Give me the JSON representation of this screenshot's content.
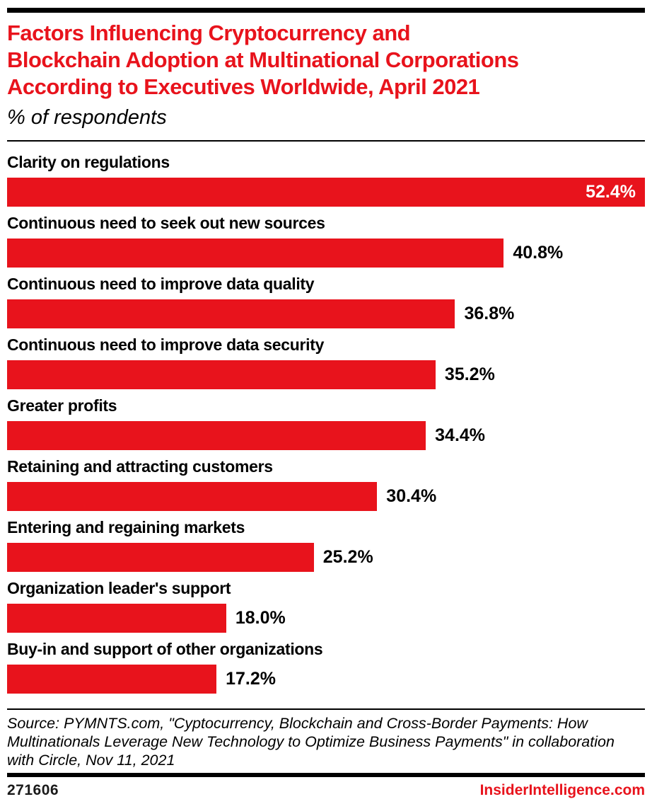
{
  "header": {
    "title_lines": [
      "Factors Influencing Cryptocurrency and",
      "Blockchain Adoption at Multinational Corporations",
      "According to Executives Worldwide, April 2021"
    ],
    "subtitle": "% of respondents"
  },
  "chart_data": {
    "type": "bar",
    "orientation": "horizontal",
    "title": "Factors Influencing Cryptocurrency and Blockchain Adoption at Multinational Corporations According to Executives Worldwide, April 2021",
    "subtitle": "% of respondents",
    "categories": [
      "Clarity on regulations",
      "Continuous need to seek out new sources",
      "Continuous need to improve data quality",
      "Continuous need to improve data security",
      "Greater profits",
      "Retaining and attracting customers",
      "Entering and regaining markets",
      "Organization leader's support",
      "Buy-in and support of other organizations"
    ],
    "values": [
      52.4,
      40.8,
      36.8,
      35.2,
      34.4,
      30.4,
      25.2,
      18.0,
      17.2
    ],
    "value_labels": [
      "52.4%",
      "40.8%",
      "36.8%",
      "35.2%",
      "34.4%",
      "30.4%",
      "25.2%",
      "18.0%",
      "17.2%"
    ],
    "xlabel": "",
    "ylabel": "",
    "xlim": [
      0,
      52.4
    ],
    "grid": false,
    "legend": "none",
    "inside_value_index": 0,
    "bar_color": "#e8131c",
    "value_color_inside": "#ffffff",
    "value_color_outside": "#000000"
  },
  "footer": {
    "source": "Source: PYMNTS.com, \"Cyptocurrency, Blockchain and Cross-Border Payments: How Multinationals Leverage New Technology to Optimize Business Payments\" in collaboration with Circle, Nov 11, 2021",
    "chart_number": "271606",
    "brand": "InsiderIntelligence.com"
  },
  "colors": {
    "accent_red": "#e8131c",
    "text_black": "#000000",
    "background": "#ffffff"
  }
}
